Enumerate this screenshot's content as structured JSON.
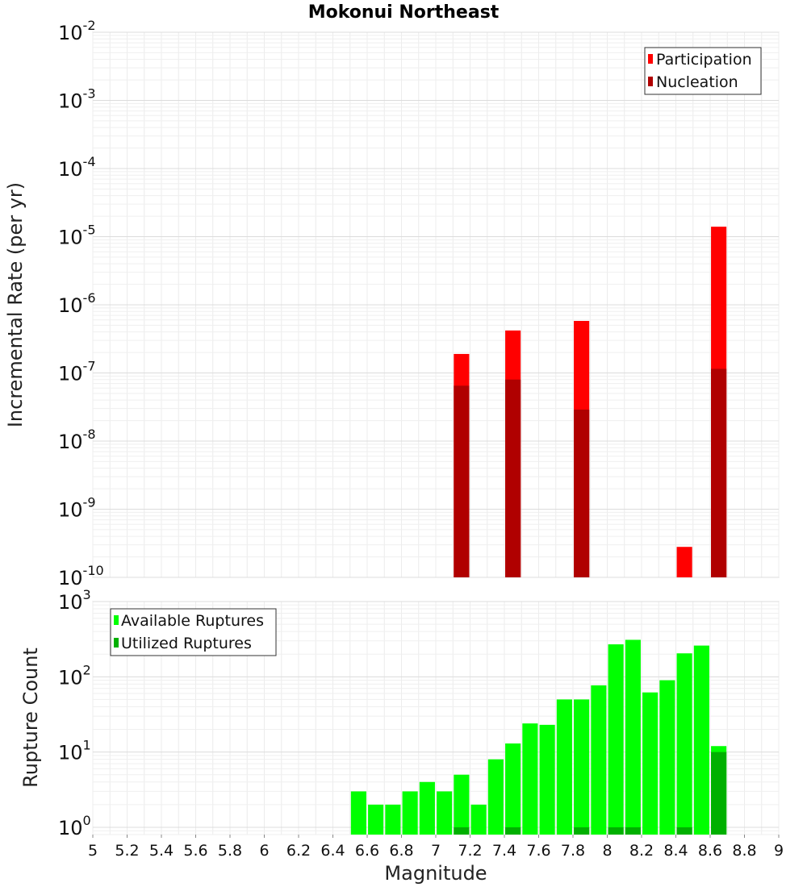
{
  "chart_data": [
    {
      "type": "bar",
      "title": "Mokonui Northeast",
      "xlabel": "",
      "ylabel": "Incremental Rate (per yr)",
      "y_scale": "log",
      "ylim": [
        1e-10,
        0.01
      ],
      "xlim": [
        5,
        9
      ],
      "y_tick_exponents": [
        "-10",
        "-9",
        "-8",
        "-7",
        "-6",
        "-5",
        "-4",
        "-3",
        "-2"
      ],
      "legend": {
        "placement": "top-right",
        "entries": [
          "Participation",
          "Nucleation"
        ]
      },
      "series": [
        {
          "name": "Participation",
          "color": "#ff0000",
          "points": [
            {
              "x": 7.15,
              "y": 1.9e-07
            },
            {
              "x": 7.45,
              "y": 4.2e-07
            },
            {
              "x": 7.85,
              "y": 5.8e-07
            },
            {
              "x": 8.45,
              "y": 2.8e-10
            },
            {
              "x": 8.65,
              "y": 1.4e-05
            }
          ]
        },
        {
          "name": "Nucleation",
          "color": "#b00000",
          "points": [
            {
              "x": 7.15,
              "y": 6.5e-08
            },
            {
              "x": 7.45,
              "y": 8e-08
            },
            {
              "x": 7.85,
              "y": 2.9e-08
            },
            {
              "x": 8.65,
              "y": 1.15e-07
            }
          ]
        }
      ]
    },
    {
      "type": "bar",
      "title": "",
      "xlabel": "Magnitude",
      "ylabel": "Rupture Count",
      "y_scale": "log",
      "ylim": [
        0.8,
        1000
      ],
      "xlim": [
        5,
        9
      ],
      "x_ticks": [
        "5",
        "5.2",
        "5.4",
        "5.6",
        "5.8",
        "6",
        "6.2",
        "6.4",
        "6.6",
        "6.8",
        "7",
        "7.2",
        "7.4",
        "7.6",
        "7.8",
        "8",
        "8.2",
        "8.4",
        "8.6",
        "8.8",
        "9"
      ],
      "y_tick_exponents": [
        "0",
        "1",
        "2",
        "3"
      ],
      "legend": {
        "placement": "top-left",
        "entries": [
          "Available Ruptures",
          "Utilized Ruptures"
        ]
      },
      "series": [
        {
          "name": "Available Ruptures",
          "color": "#00ff00",
          "points": [
            {
              "x": 6.55,
              "y": 3
            },
            {
              "x": 6.65,
              "y": 2
            },
            {
              "x": 6.75,
              "y": 2
            },
            {
              "x": 6.85,
              "y": 3
            },
            {
              "x": 6.95,
              "y": 4
            },
            {
              "x": 7.05,
              "y": 3
            },
            {
              "x": 7.15,
              "y": 5
            },
            {
              "x": 7.25,
              "y": 2
            },
            {
              "x": 7.35,
              "y": 8
            },
            {
              "x": 7.45,
              "y": 13
            },
            {
              "x": 7.55,
              "y": 24
            },
            {
              "x": 7.65,
              "y": 23
            },
            {
              "x": 7.75,
              "y": 50
            },
            {
              "x": 7.85,
              "y": 50
            },
            {
              "x": 7.95,
              "y": 77
            },
            {
              "x": 8.05,
              "y": 270
            },
            {
              "x": 8.15,
              "y": 310
            },
            {
              "x": 8.25,
              "y": 62
            },
            {
              "x": 8.35,
              "y": 90
            },
            {
              "x": 8.45,
              "y": 205
            },
            {
              "x": 8.55,
              "y": 260
            },
            {
              "x": 8.65,
              "y": 12
            }
          ]
        },
        {
          "name": "Utilized Ruptures",
          "color": "#00b000",
          "points": [
            {
              "x": 7.15,
              "y": 1
            },
            {
              "x": 7.45,
              "y": 1
            },
            {
              "x": 7.85,
              "y": 1
            },
            {
              "x": 8.05,
              "y": 1
            },
            {
              "x": 8.15,
              "y": 1
            },
            {
              "x": 8.45,
              "y": 1
            },
            {
              "x": 8.65,
              "y": 10
            }
          ]
        }
      ]
    }
  ]
}
